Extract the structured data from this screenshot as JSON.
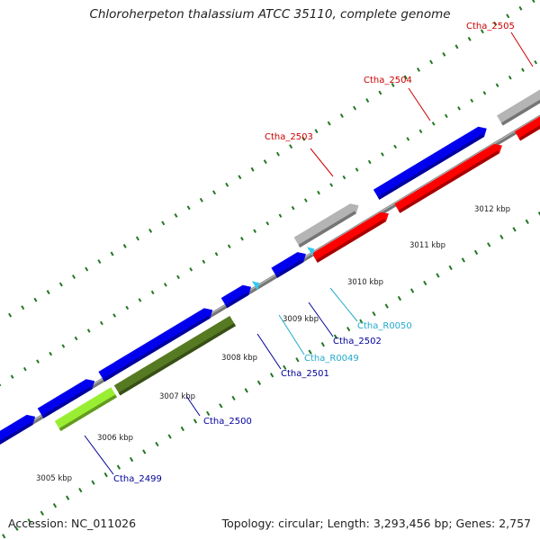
{
  "title": "Chloroherpeton thalassium ATCC 35110, complete genome",
  "footer": {
    "accession": "Accession: NC_011026",
    "topology": "Topology: circular; Length: 3,293,456 bp; Genes: 2,757"
  },
  "colors": {
    "blue": "#0000ee",
    "red": "#ff0000",
    "gray": "#b4b4b4",
    "olive": "#557a22",
    "lime": "#99ee33",
    "cyan": "#33ccee",
    "backbone": "#888888",
    "tick": "#227722",
    "label_blue": "#000099",
    "label_red": "#cc0000",
    "label_cyan": "#22aacc"
  },
  "kbp_labels": [
    "3005 kbp",
    "3006 kbp",
    "3007 kbp",
    "3008 kbp",
    "3009 kbp",
    "3010 kbp",
    "3011 kbp",
    "3012 kbp"
  ],
  "genes": [
    {
      "name": "Ctha_2499",
      "color_key": "label_blue"
    },
    {
      "name": "Ctha_2500",
      "color_key": "label_blue"
    },
    {
      "name": "Ctha_2501",
      "color_key": "label_blue"
    },
    {
      "name": "Ctha_R0049",
      "color_key": "label_cyan"
    },
    {
      "name": "Ctha_2502",
      "color_key": "label_blue"
    },
    {
      "name": "Ctha_R0050",
      "color_key": "label_cyan"
    },
    {
      "name": "Ctha_2503",
      "color_key": "label_red"
    },
    {
      "name": "Ctha_2504",
      "color_key": "label_red"
    },
    {
      "name": "Ctha_2505",
      "color_key": "label_red"
    }
  ]
}
